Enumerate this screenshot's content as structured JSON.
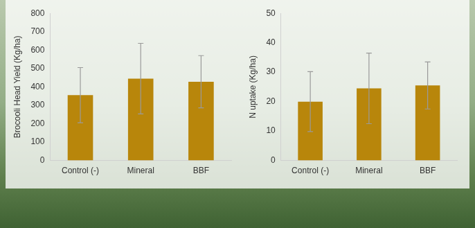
{
  "chart_data": [
    {
      "type": "bar",
      "ylabel": "Brocooli Head Yield (Kg/ha)",
      "categories": [
        "Control (-)",
        "Mineral",
        "BBF"
      ],
      "values": [
        355,
        445,
        428
      ],
      "errors": [
        150,
        192,
        142
      ],
      "color": "#b8860b",
      "ylim": [
        0,
        800
      ],
      "yticks": [
        0,
        100,
        200,
        300,
        400,
        500,
        600,
        700,
        800
      ],
      "grid": false
    },
    {
      "type": "bar",
      "ylabel": "N uptake (Kg/ha)",
      "categories": [
        "Control (-)",
        "Mineral",
        "BBF"
      ],
      "values": [
        20,
        24.5,
        25.5
      ],
      "errors": [
        10.2,
        12,
        8
      ],
      "color": "#b8860b",
      "ylim": [
        0,
        50
      ],
      "yticks": [
        0,
        10,
        20,
        30,
        40,
        50
      ],
      "grid": false
    }
  ]
}
